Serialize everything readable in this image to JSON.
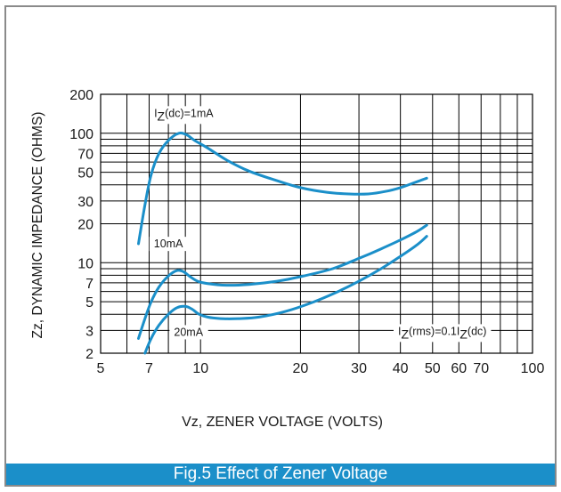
{
  "figure": {
    "caption": "Fig.5 Effect of Zener Voltage",
    "colors": {
      "curve": "#1b8fc9",
      "caption_bar": "#1b8fc9",
      "frame": "#8a8a8a",
      "grid": "#000000"
    }
  },
  "chart_data": {
    "type": "line",
    "xlabel": "Vz, ZENER VOLTAGE (VOLTS)",
    "ylabel": "Zz, DYNAMIC IMPEDANCE (OHMS)",
    "x_scale": "log",
    "y_scale": "log",
    "xlim": [
      5,
      100
    ],
    "ylim": [
      2,
      200
    ],
    "grid": true,
    "x_ticks": [
      5,
      7,
      10,
      20,
      30,
      40,
      50,
      60,
      70,
      100
    ],
    "x_tick_labels": [
      "5",
      "7",
      "10",
      "20",
      "30",
      "40",
      "50",
      "60",
      "70",
      "100"
    ],
    "x_minor_gridlines": [
      6,
      8,
      9,
      80,
      90
    ],
    "y_ticks": [
      2,
      3,
      5,
      7,
      10,
      20,
      30,
      50,
      70,
      100,
      200
    ],
    "y_tick_labels": [
      "2",
      "3",
      "5",
      "7",
      "10",
      "20",
      "30",
      "50",
      "70",
      "100",
      "200"
    ],
    "y_minor_gridlines": [
      4,
      6,
      8,
      9,
      40,
      60,
      80,
      90
    ],
    "annotations": [
      {
        "id": "iz1",
        "base": "I",
        "sub1": "Z",
        "mid": "(dc)=1mA",
        "sub2": "",
        "tail": "",
        "x": 8.9,
        "y": 145
      },
      {
        "id": "iz10",
        "base": "10mA",
        "sub1": "",
        "mid": "",
        "sub2": "",
        "tail": "",
        "x": 8.0,
        "y": 14.2
      },
      {
        "id": "iz20",
        "base": "20mA",
        "sub1": "",
        "mid": "",
        "sub2": "",
        "tail": "",
        "x": 9.2,
        "y": 2.95
      },
      {
        "id": "rms",
        "base": "I",
        "sub1": "Z",
        "mid": "(rms)=0.1I",
        "sub2": "Z",
        "tail": "(dc)",
        "x": 53.5,
        "y": 3.0
      }
    ],
    "series": [
      {
        "label_ref": "iz1",
        "x": [
          6.5,
          6.8,
          7.1,
          7.5,
          8.0,
          8.6,
          9.1,
          9.6,
          10.5,
          12,
          14,
          17,
          20,
          24,
          28,
          32,
          36,
          40,
          44,
          48
        ],
        "y": [
          14,
          28,
          48,
          70,
          88,
          100,
          97,
          88,
          77,
          62,
          51,
          43,
          38,
          35,
          34,
          34,
          35.5,
          38,
          41.5,
          45
        ]
      },
      {
        "label_ref": "iz10",
        "x": [
          6.5,
          6.8,
          7.1,
          7.5,
          8.0,
          8.5,
          8.9,
          9.3,
          9.8,
          10.5,
          12,
          14,
          17,
          20,
          25,
          30,
          35,
          40,
          45,
          48
        ],
        "y": [
          2.6,
          3.7,
          5.0,
          6.5,
          7.9,
          8.7,
          8.5,
          7.8,
          7.2,
          6.9,
          6.7,
          6.8,
          7.2,
          7.8,
          9.0,
          10.8,
          12.8,
          15.0,
          17.5,
          19.5
        ]
      },
      {
        "label_ref": "iz20",
        "x": [
          6.8,
          7.1,
          7.5,
          8.0,
          8.5,
          9.0,
          9.4,
          9.9,
          10.5,
          11.5,
          13,
          15,
          18,
          22,
          26,
          30,
          35,
          40,
          45,
          48
        ],
        "y": [
          2.0,
          2.6,
          3.3,
          4.0,
          4.5,
          4.6,
          4.4,
          4.0,
          3.8,
          3.7,
          3.7,
          3.8,
          4.2,
          5.0,
          6.0,
          7.2,
          9.0,
          11.2,
          13.8,
          16
        ]
      }
    ]
  }
}
